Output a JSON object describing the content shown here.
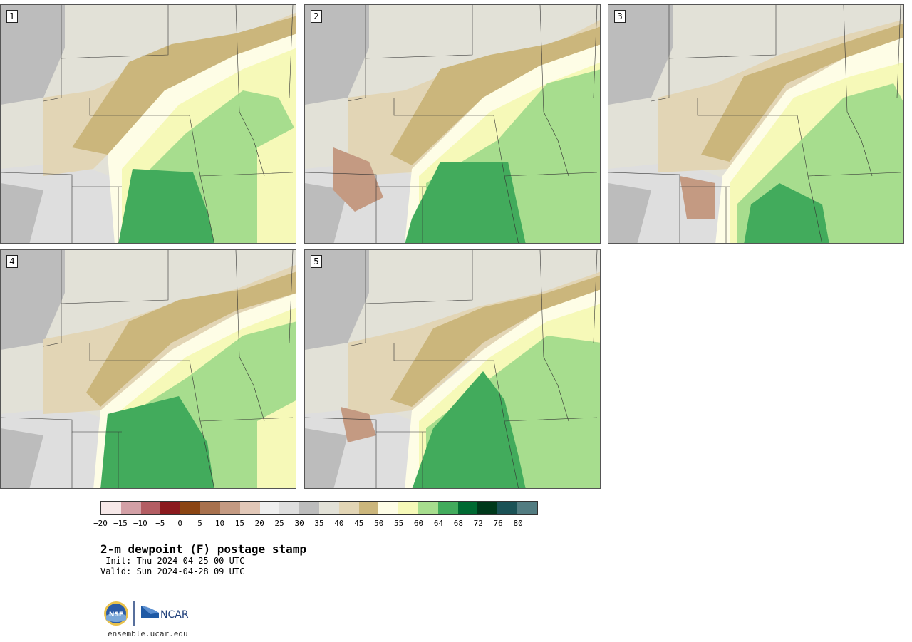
{
  "panels": [
    {
      "label": "1"
    },
    {
      "label": "2"
    },
    {
      "label": "3"
    },
    {
      "label": "4"
    },
    {
      "label": "5"
    }
  ],
  "colorbar": {
    "ticks": [
      "−20",
      "−15",
      "−10",
      "−5",
      "0",
      "5",
      "10",
      "15",
      "20",
      "25",
      "30",
      "35",
      "40",
      "45",
      "50",
      "55",
      "60",
      "64",
      "68",
      "72",
      "76",
      "80"
    ],
    "colors": [
      "#f6e8e8",
      "#d3a0a6",
      "#b35d63",
      "#8b1a1e",
      "#8b4513",
      "#a8714d",
      "#c49a82",
      "#e2c8b8",
      "#efefef",
      "#dedede",
      "#bcbcbc",
      "#e2e1d7",
      "#e2d5b5",
      "#cbb67c",
      "#fefde6",
      "#f6f9b8",
      "#a7dd8e",
      "#42ab5c",
      "#006a32",
      "#00391b",
      "#1b5256",
      "#527c81"
    ]
  },
  "title": "2-m dewpoint (F) postage stamp",
  "init": " Init: Thu 2024-04-25 00 UTC",
  "valid": "Valid: Sun 2024-04-28 09 UTC",
  "footer": {
    "logo_text": "NCAR",
    "nsf_text": "NSF",
    "url": "ensemble.ucar.edu"
  },
  "map_colors": {
    "gray_dry": "#bcbcbc",
    "light_gray": "#dedede",
    "pale_tan": "#e2e1d7",
    "tan": "#e2d5b5",
    "brown_tan": "#cbb67c",
    "cream": "#fefde6",
    "pale_yellow": "#f6f9b8",
    "light_green": "#a7dd8e",
    "green": "#42ab5c",
    "pinkish_brown": "#c49a82",
    "state_line": "#333333"
  }
}
